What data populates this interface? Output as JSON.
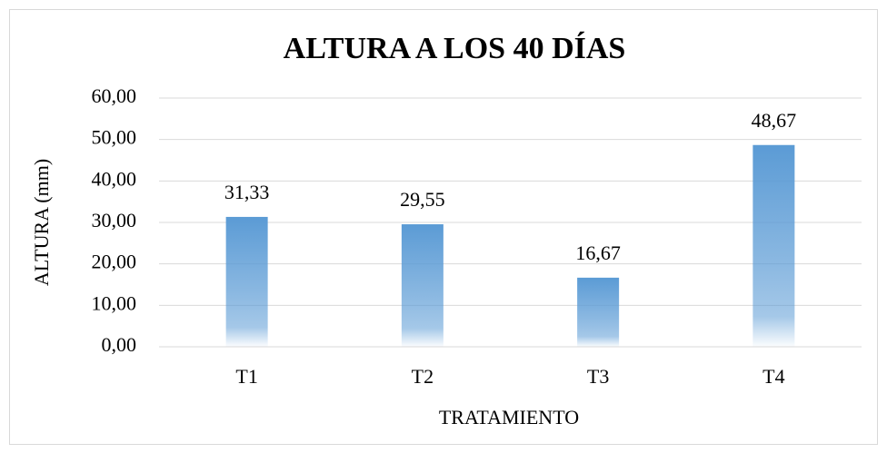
{
  "chart_data": {
    "type": "bar",
    "title": "ALTURA A LOS 40 DÍAS",
    "x_label": "TRATAMIENTO",
    "y_label": "ALTURA (mm)",
    "categories": [
      "T1",
      "T2",
      "T3",
      "T4"
    ],
    "values": [
      31.33,
      29.55,
      16.67,
      48.67
    ],
    "value_labels": [
      "31,33",
      "29,55",
      "16,67",
      "48,67"
    ],
    "color": "#5b9bd5",
    "ylim": [
      0,
      60
    ],
    "yticks": [
      {
        "value": 0,
        "label": "0,00"
      },
      {
        "value": 10,
        "label": "10,00"
      },
      {
        "value": 20,
        "label": "20,00"
      },
      {
        "value": 30,
        "label": "30,00"
      },
      {
        "value": 40,
        "label": "40,00"
      },
      {
        "value": 50,
        "label": "50,00"
      },
      {
        "value": 60,
        "label": "60,00"
      }
    ],
    "grid": true
  }
}
